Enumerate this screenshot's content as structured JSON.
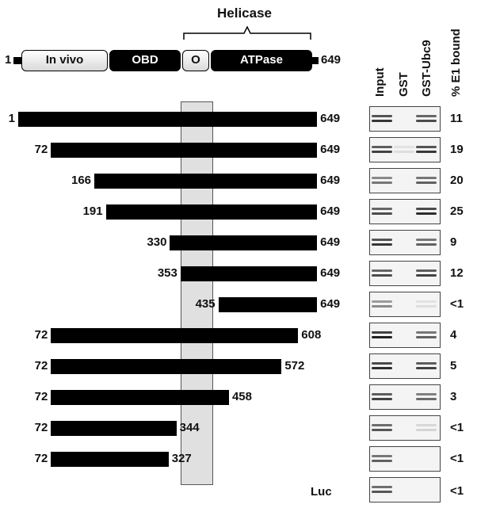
{
  "schematic": {
    "helicase_label": "Helicase",
    "start_label": "1",
    "end_label": "649",
    "domains": [
      "In vivo",
      "OBD",
      "O",
      "ATPase"
    ]
  },
  "blot_headers": [
    "Input",
    "GST",
    "GST-Ubc9",
    "% E1 bound"
  ],
  "constructs": [
    {
      "start": "1",
      "end": "649",
      "bound": "11"
    },
    {
      "start": "72",
      "end": "649",
      "bound": "19"
    },
    {
      "start": "166",
      "end": "649",
      "bound": "20"
    },
    {
      "start": "191",
      "end": "649",
      "bound": "25"
    },
    {
      "start": "330",
      "end": "649",
      "bound": "9"
    },
    {
      "start": "353",
      "end": "649",
      "bound": "12"
    },
    {
      "start": "435",
      "end": "649",
      "bound": "<1"
    },
    {
      "start": "72",
      "end": "608",
      "bound": "4"
    },
    {
      "start": "72",
      "end": "572",
      "bound": "5"
    },
    {
      "start": "72",
      "end": "458",
      "bound": "3"
    },
    {
      "start": "72",
      "end": "344",
      "bound": "<1"
    },
    {
      "start": "72",
      "end": "327",
      "bound": "<1"
    }
  ],
  "control": {
    "label": "Luc",
    "bound": "<1"
  },
  "blot_signal": [
    [
      0.9,
      0.0,
      0.8
    ],
    [
      0.85,
      0.1,
      0.9
    ],
    [
      0.6,
      0.0,
      0.7
    ],
    [
      0.8,
      0.0,
      0.95
    ],
    [
      0.9,
      0.0,
      0.7
    ],
    [
      0.8,
      0.0,
      0.85
    ],
    [
      0.5,
      0.0,
      0.1
    ],
    [
      1.0,
      0.0,
      0.7
    ],
    [
      0.95,
      0.0,
      0.85
    ],
    [
      0.85,
      0.0,
      0.65
    ],
    [
      0.75,
      0.0,
      0.15
    ],
    [
      0.7,
      0.0,
      0.0
    ],
    [
      0.75,
      0.0,
      0.0
    ]
  ],
  "colors": {
    "bar": "#000000",
    "highlight": "#e0e0e0",
    "band": "#222222"
  }
}
